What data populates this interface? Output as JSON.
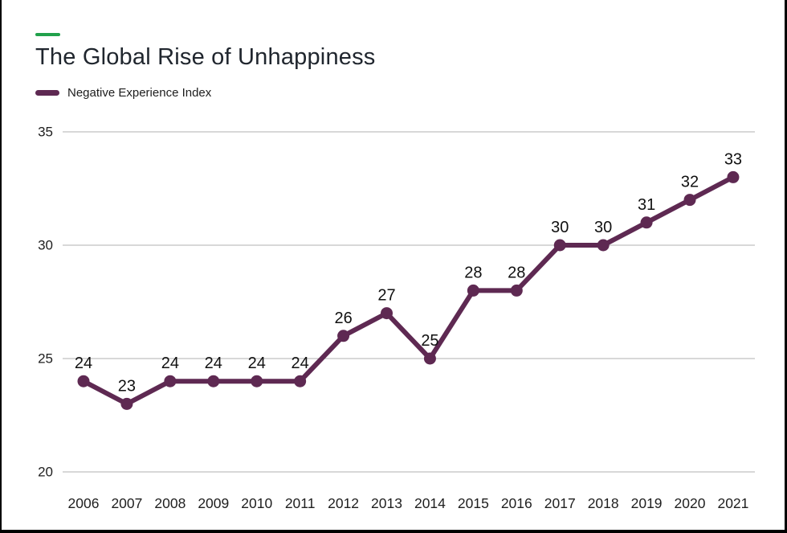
{
  "page": {
    "title": "The Global Rise of Unhappiness",
    "title_color": "#20262e",
    "accent_dash_color": "#21a14b",
    "background_color": "#ffffff",
    "frame_color": "#000000"
  },
  "legend": {
    "label": "Negative Experience Index",
    "swatch_color": "#5e2952"
  },
  "chart_data": {
    "type": "line",
    "title": "The Global Rise of Unhappiness",
    "categories": [
      "2006",
      "2007",
      "2008",
      "2009",
      "2010",
      "2011",
      "2012",
      "2013",
      "2014",
      "2015",
      "2016",
      "2017",
      "2018",
      "2019",
      "2020",
      "2021"
    ],
    "series": [
      {
        "name": "Negative Experience Index",
        "color": "#5e2952",
        "values": [
          24,
          23,
          24,
          24,
          24,
          24,
          26,
          27,
          25,
          28,
          28,
          30,
          30,
          31,
          32,
          33
        ]
      }
    ],
    "data_labels": true,
    "data_label_color": "#111111",
    "xlabel": "",
    "ylabel": "",
    "yticks": [
      20,
      25,
      30,
      35
    ],
    "ylim": [
      20,
      35
    ],
    "grid": true,
    "gridline_color": "#b0b0b0",
    "tick_label_color": "#202020",
    "legend_position": "top-left",
    "marker": "circle"
  }
}
